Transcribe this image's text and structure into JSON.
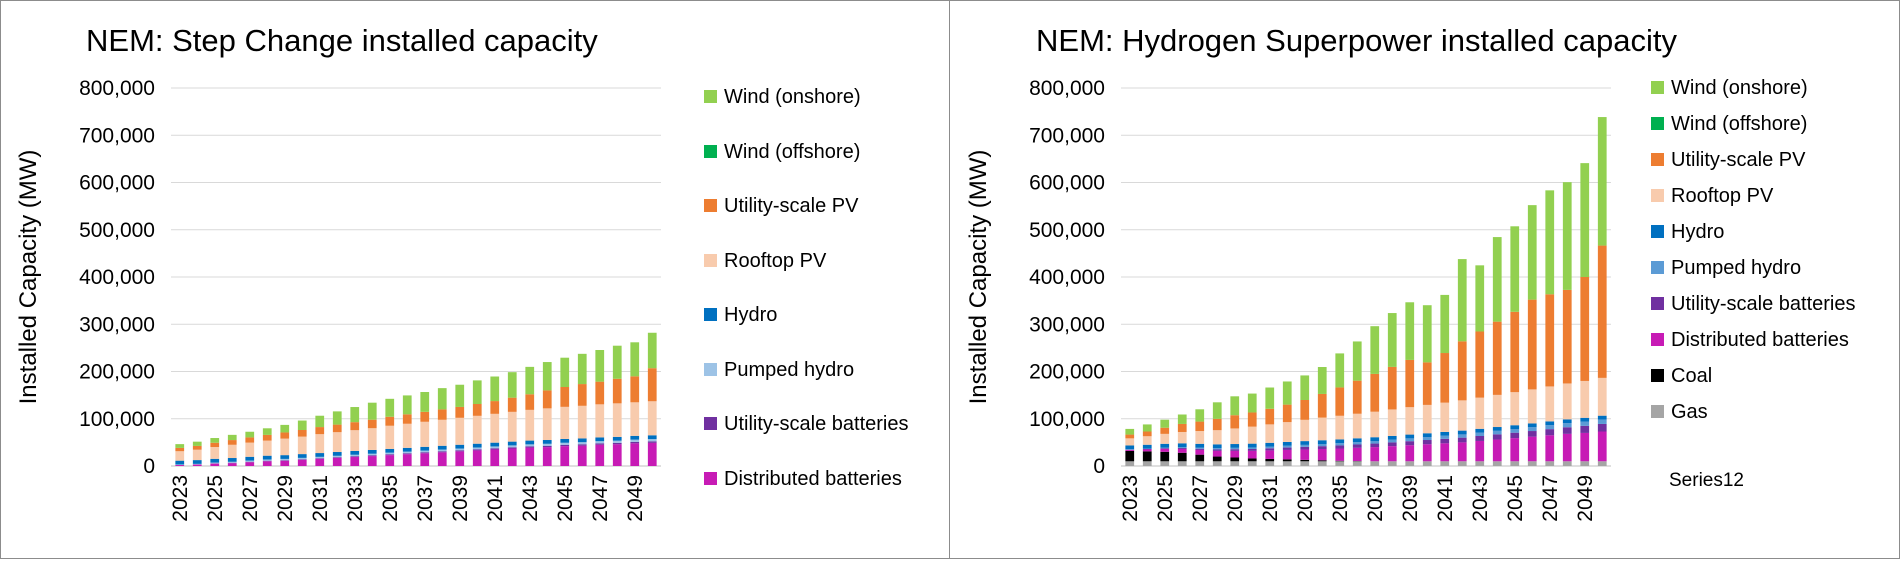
{
  "chart_data": [
    {
      "type": "bar",
      "stacked": true,
      "title": "NEM: Step Change installed capacity",
      "ylabel": "Installed Capacity (MW)",
      "xlabel": "",
      "ylim": [
        0,
        800000
      ],
      "y_ticks": [
        "0",
        "100,000",
        "200,000",
        "300,000",
        "400,000",
        "500,000",
        "600,000",
        "700,000",
        "800,000"
      ],
      "x_tick_labels": [
        "2023",
        "2025",
        "2027",
        "2029",
        "2031",
        "2033",
        "2035",
        "2037",
        "2039",
        "2041",
        "2043",
        "2045",
        "2047",
        "2049"
      ],
      "grid": "horizontal",
      "legend_position": "right",
      "categories": [
        "2023",
        "2024",
        "2025",
        "2026",
        "2027",
        "2028",
        "2029",
        "2030",
        "2031",
        "2032",
        "2033",
        "2034",
        "2035",
        "2036",
        "2037",
        "2038",
        "2039",
        "2040",
        "2041",
        "2042",
        "2043",
        "2044",
        "2045",
        "2046",
        "2047",
        "2048",
        "2049",
        "2050"
      ],
      "series": [
        {
          "name": "Distributed batteries",
          "color": "#c71bb5",
          "values": [
            2000,
            3000,
            5000,
            6000,
            8000,
            10000,
            11000,
            13000,
            15000,
            17000,
            19000,
            21000,
            23000,
            25000,
            27000,
            29000,
            31000,
            33000,
            35000,
            37000,
            39000,
            40000,
            42000,
            43000,
            45000,
            46000,
            48000,
            49000
          ]
        },
        {
          "name": "Utility-scale batteries",
          "color": "#7030a0",
          "values": [
            300,
            500,
            700,
            900,
            1000,
            1200,
            1300,
            1400,
            1500,
            1600,
            1700,
            1800,
            1900,
            2000,
            2100,
            2200,
            2300,
            2400,
            2500,
            2600,
            2700,
            2800,
            2900,
            3000,
            3000,
            3000,
            3100,
            3200
          ]
        },
        {
          "name": "Pumped hydro",
          "color": "#9dc3e6",
          "values": [
            1000,
            1000,
            1500,
            2000,
            2500,
            2600,
            2700,
            2800,
            2900,
            3000,
            3100,
            3200,
            3300,
            3400,
            3500,
            3600,
            3700,
            3800,
            3900,
            4000,
            4100,
            4200,
            4300,
            4400,
            4500,
            4600,
            4700,
            4800
          ]
        },
        {
          "name": "Hydro",
          "color": "#0070c0",
          "values": [
            8000,
            8000,
            8000,
            8000,
            8000,
            8000,
            8000,
            8000,
            8000,
            8000,
            8000,
            8000,
            8000,
            8000,
            8000,
            8000,
            8000,
            8000,
            8000,
            8000,
            8000,
            8000,
            8000,
            8000,
            8000,
            8000,
            8000,
            8000
          ]
        },
        {
          "name": "Rooftop PV",
          "color": "#f8cbad",
          "values": [
            20000,
            22000,
            25000,
            28000,
            30000,
            32000,
            35000,
            37000,
            40000,
            42000,
            44000,
            46000,
            49000,
            51000,
            53000,
            55000,
            57000,
            59000,
            61000,
            63000,
            65000,
            67000,
            68000,
            69000,
            70000,
            71000,
            71000,
            72000
          ]
        },
        {
          "name": "Utility-scale PV",
          "color": "#ed7d31",
          "values": [
            7000,
            8000,
            9000,
            10000,
            11000,
            12000,
            13000,
            14000,
            15000,
            16000,
            17000,
            18000,
            19000,
            20000,
            21000,
            22000,
            23000,
            25000,
            27000,
            30000,
            33000,
            38000,
            42000,
            46000,
            48000,
            52000,
            55000,
            70000
          ]
        },
        {
          "name": "Wind (offshore)",
          "color": "#00b050",
          "values": [
            0,
            0,
            0,
            0,
            0,
            0,
            0,
            0,
            0,
            0,
            0,
            0,
            0,
            0,
            0,
            0,
            0,
            0,
            0,
            0,
            0,
            0,
            0,
            0,
            0,
            0,
            0,
            0
          ]
        },
        {
          "name": "Wind (onshore)",
          "color": "#92d050",
          "values": [
            8000,
            9000,
            10000,
            11000,
            12000,
            14000,
            16000,
            20000,
            24000,
            28000,
            32000,
            36000,
            38000,
            40000,
            42000,
            45000,
            47000,
            50000,
            52000,
            54000,
            58000,
            60000,
            62000,
            64000,
            67000,
            70000,
            72000,
            75000
          ]
        }
      ],
      "legend": [
        {
          "name": "Wind (onshore)",
          "color": "#92d050"
        },
        {
          "name": "Wind (offshore)",
          "color": "#00b050"
        },
        {
          "name": "Utility-scale PV",
          "color": "#ed7d31"
        },
        {
          "name": "Rooftop PV",
          "color": "#f8cbad"
        },
        {
          "name": "Hydro",
          "color": "#0070c0"
        },
        {
          "name": "Pumped hydro",
          "color": "#9dc3e6"
        },
        {
          "name": "Utility-scale batteries",
          "color": "#7030a0"
        },
        {
          "name": "Distributed batteries",
          "color": "#c71bb5"
        }
      ]
    },
    {
      "type": "bar",
      "stacked": true,
      "title": "NEM: Hydrogen Superpower installed capacity",
      "ylabel": "Installed Capacity (MW)",
      "xlabel": "",
      "ylim": [
        0,
        800000
      ],
      "y_ticks": [
        "0",
        "100,000",
        "200,000",
        "300,000",
        "400,000",
        "500,000",
        "600,000",
        "700,000",
        "800,000"
      ],
      "x_tick_labels": [
        "2023",
        "2025",
        "2027",
        "2029",
        "2031",
        "2033",
        "2035",
        "2037",
        "2039",
        "2041",
        "2043",
        "2045",
        "2047",
        "2049"
      ],
      "grid": "horizontal",
      "legend_position": "right",
      "categories": [
        "2023",
        "2024",
        "2025",
        "2026",
        "2027",
        "2028",
        "2029",
        "2030",
        "2031",
        "2032",
        "2033",
        "2034",
        "2035",
        "2036",
        "2037",
        "2038",
        "2039",
        "2040",
        "2041",
        "2042",
        "2043",
        "2044",
        "2045",
        "2046",
        "2047",
        "2048",
        "2049",
        "2050"
      ],
      "series": [
        {
          "name": "Gas",
          "color": "#a5a5a5",
          "values": [
            10000,
            10000,
            10000,
            10000,
            10000,
            10000,
            10000,
            10000,
            10000,
            10000,
            10000,
            10000,
            10000,
            10000,
            10000,
            10000,
            10000,
            10000,
            10000,
            10000,
            10000,
            10000,
            10000,
            10000,
            10000,
            10000,
            10000,
            10000
          ]
        },
        {
          "name": "Coal",
          "color": "#000000",
          "values": [
            22000,
            21000,
            20000,
            18000,
            14000,
            10000,
            8000,
            6000,
            5000,
            4000,
            3000,
            2000,
            1000,
            500,
            0,
            0,
            0,
            0,
            0,
            0,
            0,
            0,
            0,
            0,
            0,
            0,
            0,
            0
          ]
        },
        {
          "name": "Distributed batteries",
          "color": "#c71bb5",
          "values": [
            2000,
            4000,
            6000,
            8000,
            10000,
            12000,
            14000,
            16000,
            18000,
            20000,
            22000,
            24000,
            26000,
            28000,
            30000,
            32000,
            34000,
            36000,
            38000,
            40000,
            43000,
            46000,
            49000,
            52000,
            55000,
            58000,
            60000,
            63000
          ]
        },
        {
          "name": "Utility-scale batteries",
          "color": "#7030a0",
          "values": [
            500,
            1000,
            1500,
            2000,
            2500,
            3000,
            3500,
            4000,
            4500,
            5000,
            5500,
            6000,
            6500,
            7000,
            7500,
            8000,
            8500,
            9000,
            9500,
            10000,
            10500,
            11000,
            11500,
            12000,
            13000,
            14000,
            15000,
            16000
          ]
        },
        {
          "name": "Pumped hydro",
          "color": "#5b9bd5",
          "values": [
            1000,
            1000,
            1500,
            2000,
            2500,
            2800,
            3000,
            3300,
            3600,
            3900,
            4200,
            4500,
            4800,
            5100,
            5400,
            5700,
            6000,
            6300,
            6600,
            6900,
            7200,
            7500,
            7800,
            8100,
            8400,
            8700,
            9000,
            9500
          ]
        },
        {
          "name": "Hydro",
          "color": "#0070c0",
          "values": [
            8000,
            8000,
            8000,
            8000,
            8000,
            8000,
            8000,
            8000,
            8000,
            8000,
            8000,
            8000,
            8000,
            8000,
            8000,
            8000,
            8000,
            8000,
            8000,
            8000,
            8000,
            8000,
            8000,
            8000,
            8000,
            8000,
            8000,
            8000
          ]
        },
        {
          "name": "Rooftop PV",
          "color": "#f8cbad",
          "values": [
            15000,
            18000,
            21000,
            24000,
            27000,
            30000,
            33000,
            36000,
            39000,
            42000,
            45000,
            48000,
            50000,
            52000,
            54000,
            56000,
            58000,
            60000,
            62000,
            64000,
            66000,
            68000,
            70000,
            72000,
            74000,
            76000,
            78000,
            80000
          ]
        },
        {
          "name": "Utility-scale PV",
          "color": "#ed7d31",
          "values": [
            8000,
            10000,
            13000,
            17000,
            20000,
            24000,
            28000,
            30000,
            33000,
            37000,
            42000,
            50000,
            60000,
            70000,
            80000,
            90000,
            100000,
            90000,
            105000,
            125000,
            140000,
            155000,
            170000,
            190000,
            195000,
            198000,
            220000,
            280000
          ]
        },
        {
          "name": "Wind (offshore)",
          "color": "#00b050",
          "values": [
            0,
            0,
            0,
            0,
            0,
            0,
            0,
            0,
            0,
            0,
            0,
            0,
            0,
            0,
            0,
            0,
            0,
            0,
            0,
            0,
            0,
            0,
            0,
            0,
            0,
            0,
            0,
            0
          ]
        },
        {
          "name": "Wind (onshore)",
          "color": "#92d050",
          "values": [
            12000,
            15000,
            17000,
            20000,
            26000,
            35000,
            40000,
            40000,
            45000,
            49000,
            52000,
            57000,
            72000,
            83000,
            101000,
            114000,
            122000,
            121000,
            123000,
            174000,
            140000,
            179000,
            181000,
            200000,
            220000,
            228000,
            241000,
            272000
          ]
        }
      ],
      "legend": [
        {
          "name": "Wind (onshore)",
          "color": "#92d050"
        },
        {
          "name": "Wind (offshore)",
          "color": "#00b050"
        },
        {
          "name": "Utility-scale PV",
          "color": "#ed7d31"
        },
        {
          "name": "Rooftop PV",
          "color": "#f8cbad"
        },
        {
          "name": "Hydro",
          "color": "#0070c0"
        },
        {
          "name": "Pumped hydro",
          "color": "#5b9bd5"
        },
        {
          "name": "Utility-scale batteries",
          "color": "#7030a0"
        },
        {
          "name": "Distributed batteries",
          "color": "#c71bb5"
        },
        {
          "name": "Coal",
          "color": "#000000"
        },
        {
          "name": "Gas",
          "color": "#a5a5a5"
        }
      ],
      "extra_legend_label": "Series12"
    }
  ]
}
